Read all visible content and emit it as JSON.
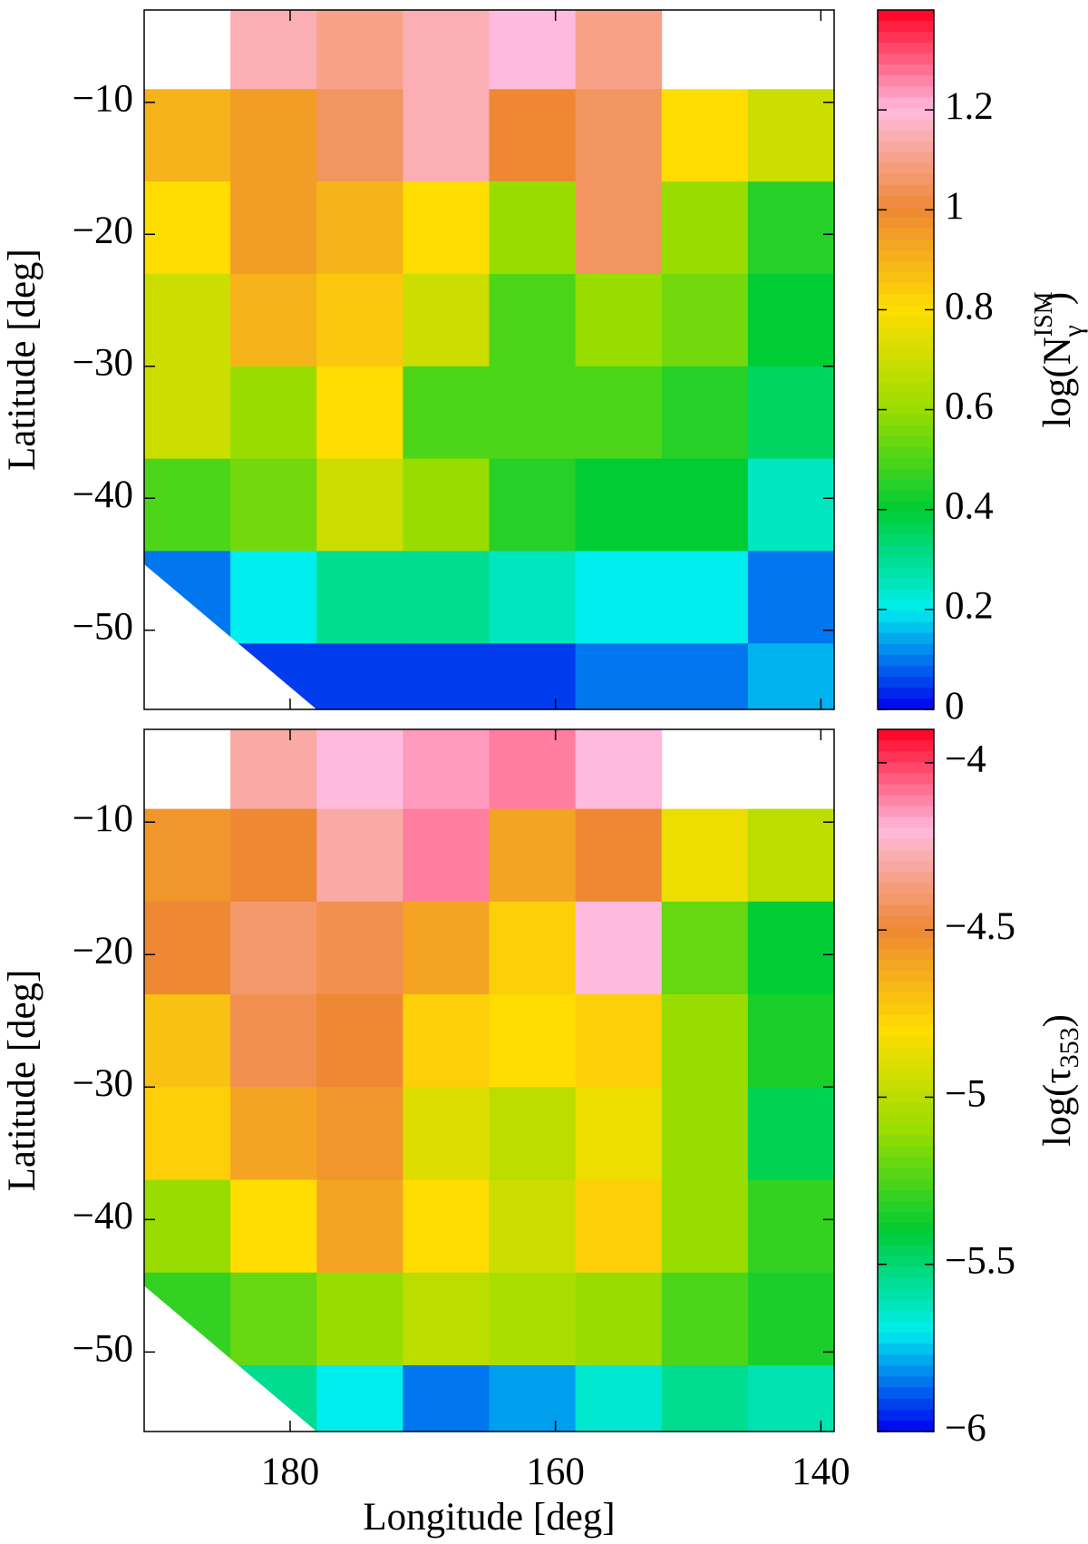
{
  "chart_data": [
    {
      "type": "heatmap",
      "ylabel": "Latitude [deg]",
      "colorbar_label": {
        "text": "log(N",
        "subscript": "γ",
        "superscript": "ISM",
        "end": ")"
      },
      "xlim": [
        191,
        139
      ],
      "ylim": [
        -56,
        -3
      ],
      "xbins": [
        191,
        184.5,
        178,
        171.5,
        165,
        158.5,
        152,
        145.5,
        139
      ],
      "ybins": [
        -3,
        -9,
        -16,
        -23,
        -30,
        -37,
        -44,
        -51,
        -56
      ],
      "yticks": [
        {
          "value": -10,
          "label": "−10"
        },
        {
          "value": -20,
          "label": "−20"
        },
        {
          "value": -30,
          "label": "−30"
        },
        {
          "value": -40,
          "label": "−40"
        },
        {
          "value": -50,
          "label": "−50"
        }
      ],
      "clim": [
        0,
        1.4
      ],
      "cticks": [
        0,
        0.2,
        0.4,
        0.6,
        0.8,
        1,
        1.2
      ],
      "colormap": [
        "#0000ee",
        "#00eeee",
        "#00cc33",
        "#99dd00",
        "#ffdd00",
        "#ee8833",
        "#ffbbdd",
        "#ff0022"
      ],
      "z": [
        [
          null,
          1.15,
          1.1,
          1.15,
          1.2,
          1.1,
          null,
          null
        ],
        [
          0.9,
          0.95,
          1.05,
          1.15,
          1.0,
          1.05,
          0.8,
          0.7
        ],
        [
          0.8,
          0.95,
          0.9,
          0.8,
          0.6,
          1.05,
          0.6,
          0.45
        ],
        [
          0.7,
          0.9,
          0.85,
          0.7,
          0.5,
          0.6,
          0.55,
          0.4
        ],
        [
          0.7,
          0.6,
          0.8,
          0.5,
          0.5,
          0.5,
          0.45,
          0.35
        ],
        [
          0.5,
          0.55,
          0.7,
          0.6,
          0.45,
          0.4,
          0.4,
          0.25
        ],
        [
          0.1,
          0.2,
          0.3,
          0.3,
          0.25,
          0.2,
          0.2,
          0.1
        ],
        [
          null,
          0.05,
          0.05,
          0.05,
          0.05,
          0.1,
          0.1,
          0.15
        ]
      ]
    },
    {
      "type": "heatmap",
      "xlabel": "Longitude [deg]",
      "ylabel": "Latitude [deg]",
      "colorbar_label": {
        "text": "log(τ",
        "subscript": "353",
        "end": ")"
      },
      "xlim": [
        191,
        139
      ],
      "ylim": [
        -56,
        -3
      ],
      "xticks": [
        180,
        160,
        140
      ],
      "xbins": [
        191,
        184.5,
        178,
        171.5,
        165,
        158.5,
        152,
        145.5,
        139
      ],
      "ybins": [
        -3,
        -9,
        -16,
        -23,
        -30,
        -37,
        -44,
        -51,
        -56
      ],
      "yticks": [
        {
          "value": -10,
          "label": "−10"
        },
        {
          "value": -20,
          "label": "−20"
        },
        {
          "value": -30,
          "label": "−30"
        },
        {
          "value": -40,
          "label": "−40"
        },
        {
          "value": -50,
          "label": "−50"
        }
      ],
      "clim": [
        -6,
        -3.9
      ],
      "cticks": [
        {
          "value": -4,
          "label": "−4"
        },
        {
          "value": -4.5,
          "label": "−4.5"
        },
        {
          "value": -5,
          "label": "−5"
        },
        {
          "value": -5.5,
          "label": "−5.5"
        },
        {
          "value": -6,
          "label": "−6"
        }
      ],
      "colormap": [
        "#0000ee",
        "#00eeee",
        "#00cc33",
        "#99dd00",
        "#ffdd00",
        "#ee8833",
        "#ffbbdd",
        "#ff0022"
      ],
      "z": [
        [
          null,
          -4.3,
          -4.2,
          -4.15,
          -4.1,
          -4.2,
          null,
          null
        ],
        [
          -4.55,
          -4.5,
          -4.3,
          -4.1,
          -4.6,
          -4.5,
          -4.85,
          -5.0
        ],
        [
          -4.5,
          -4.4,
          -4.45,
          -4.6,
          -4.75,
          -4.2,
          -5.2,
          -5.4
        ],
        [
          -4.7,
          -4.45,
          -4.5,
          -4.75,
          -4.8,
          -4.75,
          -5.1,
          -5.35
        ],
        [
          -4.75,
          -4.6,
          -4.55,
          -4.9,
          -5.0,
          -4.85,
          -5.1,
          -5.45
        ],
        [
          -5.1,
          -4.8,
          -4.6,
          -4.8,
          -4.95,
          -4.75,
          -5.1,
          -5.3
        ],
        [
          -5.3,
          -5.2,
          -5.1,
          -5.0,
          -5.05,
          -5.1,
          -5.25,
          -5.35
        ],
        [
          null,
          -5.55,
          -5.7,
          -5.85,
          -5.8,
          -5.65,
          -5.55,
          -5.6
        ]
      ]
    }
  ]
}
